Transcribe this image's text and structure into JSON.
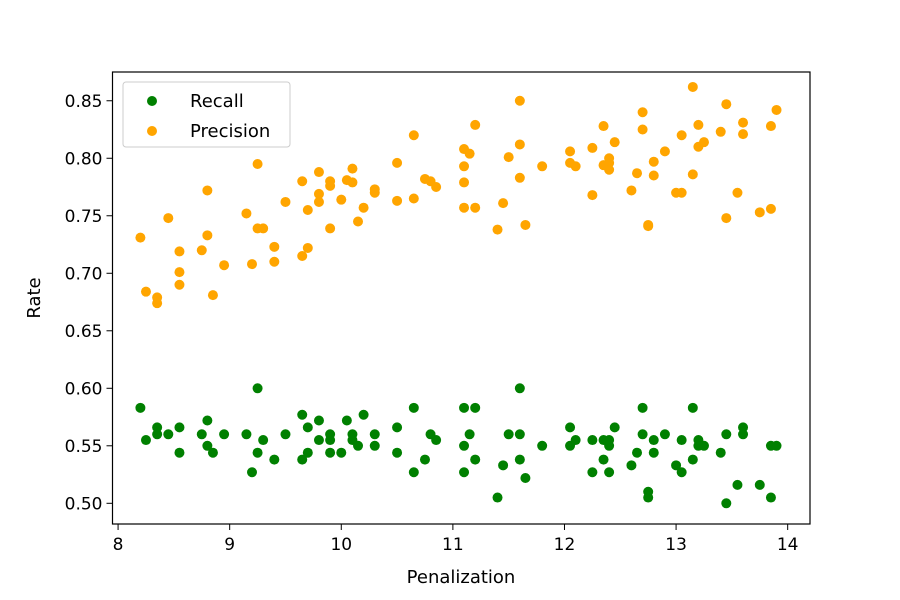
{
  "chart_data": {
    "type": "scatter",
    "title": "",
    "xlabel": "Penalization",
    "ylabel": "Rate",
    "xlim": [
      7.95,
      14.2
    ],
    "ylim": [
      0.482,
      0.875
    ],
    "xticks": [
      8,
      9,
      10,
      11,
      12,
      13,
      14
    ],
    "yticks": [
      0.5,
      0.55,
      0.6,
      0.65,
      0.7,
      0.75,
      0.8,
      0.85
    ],
    "grid": false,
    "legend_position": "top-left",
    "series": [
      {
        "name": "Recall",
        "color": "#008000",
        "x": [
          8.2,
          8.25,
          8.35,
          8.35,
          8.45,
          8.55,
          8.55,
          8.75,
          8.8,
          8.8,
          8.85,
          8.95,
          9.15,
          9.2,
          9.25,
          9.25,
          9.3,
          9.4,
          9.5,
          9.65,
          9.65,
          9.7,
          9.7,
          9.8,
          9.8,
          9.9,
          9.9,
          9.9,
          10.0,
          10.05,
          10.1,
          10.1,
          10.15,
          10.2,
          10.3,
          10.3,
          10.5,
          10.5,
          10.65,
          10.65,
          10.75,
          10.8,
          10.85,
          11.1,
          11.1,
          11.1,
          11.15,
          11.2,
          11.2,
          11.4,
          11.45,
          11.5,
          11.6,
          11.6,
          11.6,
          11.65,
          11.8,
          12.05,
          12.05,
          12.1,
          12.25,
          12.25,
          12.35,
          12.35,
          12.4,
          12.4,
          12.4,
          12.45,
          12.6,
          12.65,
          12.7,
          12.7,
          12.75,
          12.75,
          12.8,
          12.8,
          12.9,
          13.0,
          13.05,
          13.05,
          13.15,
          13.15,
          13.2,
          13.2,
          13.25,
          13.4,
          13.45,
          13.45,
          13.55,
          13.6,
          13.6,
          13.75,
          13.85,
          13.85,
          13.9
        ],
        "y": [
          0.583,
          0.555,
          0.566,
          0.56,
          0.56,
          0.566,
          0.544,
          0.56,
          0.572,
          0.55,
          0.544,
          0.56,
          0.56,
          0.527,
          0.6,
          0.544,
          0.555,
          0.538,
          0.56,
          0.577,
          0.538,
          0.566,
          0.544,
          0.572,
          0.555,
          0.56,
          0.555,
          0.544,
          0.544,
          0.572,
          0.56,
          0.555,
          0.55,
          0.577,
          0.56,
          0.55,
          0.566,
          0.544,
          0.583,
          0.527,
          0.538,
          0.56,
          0.555,
          0.583,
          0.55,
          0.527,
          0.56,
          0.583,
          0.538,
          0.505,
          0.533,
          0.56,
          0.6,
          0.56,
          0.538,
          0.522,
          0.55,
          0.566,
          0.55,
          0.555,
          0.555,
          0.527,
          0.555,
          0.538,
          0.555,
          0.55,
          0.527,
          0.566,
          0.533,
          0.544,
          0.583,
          0.56,
          0.51,
          0.505,
          0.555,
          0.544,
          0.56,
          0.533,
          0.555,
          0.527,
          0.583,
          0.538,
          0.555,
          0.55,
          0.55,
          0.544,
          0.56,
          0.5,
          0.516,
          0.566,
          0.56,
          0.516,
          0.55,
          0.505,
          0.55
        ]
      },
      {
        "name": "Precision",
        "color": "#ffa500",
        "x": [
          8.2,
          8.25,
          8.35,
          8.35,
          8.45,
          8.55,
          8.55,
          8.55,
          8.75,
          8.8,
          8.8,
          8.85,
          8.95,
          9.15,
          9.2,
          9.25,
          9.25,
          9.3,
          9.4,
          9.4,
          9.5,
          9.65,
          9.65,
          9.7,
          9.7,
          9.8,
          9.8,
          9.8,
          9.9,
          9.9,
          9.9,
          10.0,
          10.05,
          10.1,
          10.1,
          10.15,
          10.2,
          10.3,
          10.3,
          10.5,
          10.5,
          10.65,
          10.65,
          10.75,
          10.8,
          10.85,
          11.1,
          11.1,
          11.1,
          11.1,
          11.15,
          11.2,
          11.2,
          11.4,
          11.45,
          11.5,
          11.6,
          11.6,
          11.6,
          11.65,
          11.8,
          12.05,
          12.05,
          12.1,
          12.25,
          12.25,
          12.35,
          12.35,
          12.4,
          12.4,
          12.4,
          12.45,
          12.6,
          12.65,
          12.7,
          12.7,
          12.75,
          12.75,
          12.8,
          12.8,
          12.9,
          13.0,
          13.05,
          13.05,
          13.15,
          13.15,
          13.2,
          13.2,
          13.25,
          13.4,
          13.45,
          13.45,
          13.55,
          13.6,
          13.6,
          13.75,
          13.85,
          13.85,
          13.9
        ],
        "y": [
          0.731,
          0.684,
          0.679,
          0.674,
          0.748,
          0.719,
          0.701,
          0.69,
          0.72,
          0.772,
          0.733,
          0.681,
          0.707,
          0.752,
          0.708,
          0.795,
          0.739,
          0.739,
          0.723,
          0.71,
          0.762,
          0.78,
          0.715,
          0.755,
          0.722,
          0.788,
          0.769,
          0.762,
          0.78,
          0.776,
          0.739,
          0.764,
          0.781,
          0.791,
          0.779,
          0.745,
          0.757,
          0.773,
          0.77,
          0.796,
          0.763,
          0.82,
          0.765,
          0.782,
          0.78,
          0.775,
          0.808,
          0.793,
          0.779,
          0.757,
          0.804,
          0.829,
          0.757,
          0.738,
          0.761,
          0.801,
          0.85,
          0.812,
          0.783,
          0.742,
          0.793,
          0.806,
          0.796,
          0.793,
          0.809,
          0.768,
          0.828,
          0.794,
          0.8,
          0.796,
          0.79,
          0.814,
          0.772,
          0.787,
          0.84,
          0.825,
          0.742,
          0.741,
          0.797,
          0.785,
          0.806,
          0.77,
          0.82,
          0.77,
          0.862,
          0.786,
          0.829,
          0.81,
          0.814,
          0.823,
          0.847,
          0.748,
          0.77,
          0.831,
          0.821,
          0.753,
          0.828,
          0.756,
          0.842
        ]
      }
    ]
  }
}
